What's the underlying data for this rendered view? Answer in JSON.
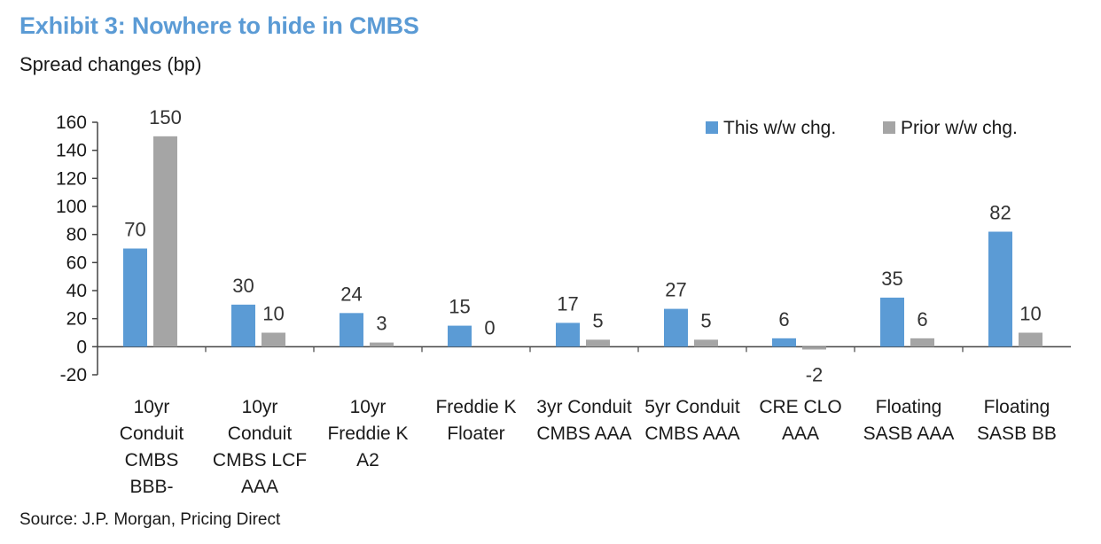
{
  "header": {
    "title": "Exhibit 3: Nowhere to hide in CMBS",
    "subtitle": "Spread changes (bp)"
  },
  "footer": {
    "source": "Source: J.P. Morgan, Pricing Direct"
  },
  "colors": {
    "this_week": "#5b9bd5",
    "prior_week": "#a5a5a5",
    "title": "#5b9bd5"
  },
  "chart_data": {
    "type": "bar",
    "title": "Exhibit 3: Nowhere to hide in CMBS",
    "ylabel": "Spread changes (bp)",
    "xlabel": "",
    "ylim": [
      -20,
      160
    ],
    "yticks": [
      -20,
      0,
      20,
      40,
      60,
      80,
      100,
      120,
      140,
      160
    ],
    "grid": false,
    "legend_position": "top-right",
    "categories": [
      [
        "10yr",
        "Conduit",
        "CMBS",
        "BBB-"
      ],
      [
        "10yr",
        "Conduit",
        "CMBS LCF",
        "AAA"
      ],
      [
        "10yr",
        "Freddie K",
        "A2"
      ],
      [
        "Freddie K",
        "Floater"
      ],
      [
        "3yr Conduit",
        "CMBS AAA"
      ],
      [
        "5yr Conduit",
        "CMBS AAA"
      ],
      [
        "CRE CLO",
        "AAA"
      ],
      [
        "Floating",
        "SASB AAA"
      ],
      [
        "Floating",
        "SASB BB"
      ]
    ],
    "series": [
      {
        "name": "This w/w chg.",
        "values": [
          70,
          30,
          24,
          15,
          17,
          27,
          6,
          35,
          82
        ]
      },
      {
        "name": "Prior w/w chg.",
        "values": [
          150,
          10,
          3,
          0,
          5,
          5,
          -2,
          6,
          10
        ]
      }
    ]
  }
}
